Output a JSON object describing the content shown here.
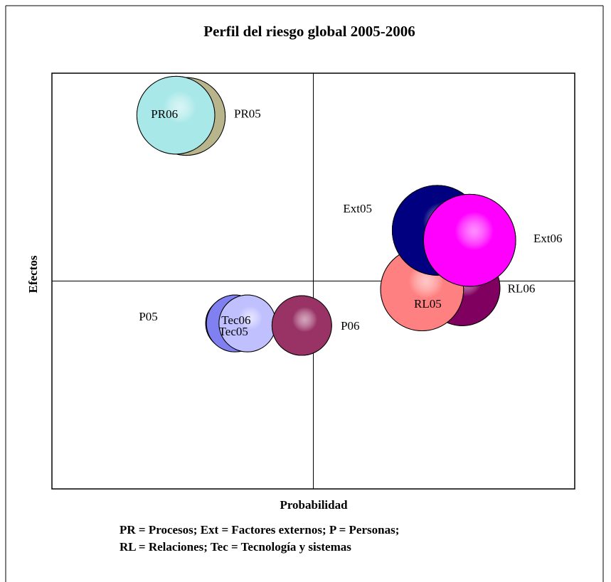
{
  "chart_data": {
    "type": "bubble",
    "title": "Perfil del riesgo global 2005-2006",
    "x_label": "Probabilidad",
    "y_label": "Efectos",
    "notes": [
      "PR = Procesos; Ext = Factores externos; P = Personas;",
      "RL = Relaciones; Tec = Tecnología y sistemas"
    ],
    "xlim": [
      0,
      10
    ],
    "ylim": [
      0,
      10
    ],
    "x_cross": 5,
    "y_cross": 5,
    "series": [
      {
        "name": "PR05",
        "color": "#b8b48c",
        "x": [
          2.57
        ],
        "values": [
          8.96
        ],
        "sizes": [
          30
        ]
      },
      {
        "name": "PR06",
        "color": "#a8e8e8",
        "x": [
          2.37
        ],
        "values": [
          8.99
        ],
        "sizes": [
          30
        ]
      },
      {
        "name": "RL06",
        "color": "#800060",
        "x": [
          7.85
        ],
        "values": [
          4.83
        ],
        "sizes": [
          28
        ]
      },
      {
        "name": "RL05",
        "color": "#ff8080",
        "x": [
          7.08
        ],
        "values": [
          4.8
        ],
        "sizes": [
          34
        ]
      },
      {
        "name": "Ext05",
        "color": "#000080",
        "x": [
          7.37
        ],
        "values": [
          6.22
        ],
        "sizes": [
          40
        ]
      },
      {
        "name": "Ext06",
        "color": "#ff00ff",
        "x": [
          7.99
        ],
        "values": [
          5.98
        ],
        "sizes": [
          42
        ]
      },
      {
        "name": "P05",
        "color": "#9999ff",
        "x": [
          3.45
        ],
        "values": [
          3.98
        ],
        "sizes": [
          14
        ]
      },
      {
        "name": "Tec05",
        "color": "#8080f0",
        "x": [
          3.5
        ],
        "values": [
          3.98
        ],
        "sizes": [
          16
        ]
      },
      {
        "name": "Tec06",
        "color": "#c0c0ff",
        "x": [
          3.74
        ],
        "values": [
          3.98
        ],
        "sizes": [
          16
        ]
      },
      {
        "name": "P06",
        "color": "#993366",
        "x": [
          4.78
        ],
        "values": [
          3.93
        ],
        "sizes": [
          17.6
        ]
      }
    ]
  }
}
